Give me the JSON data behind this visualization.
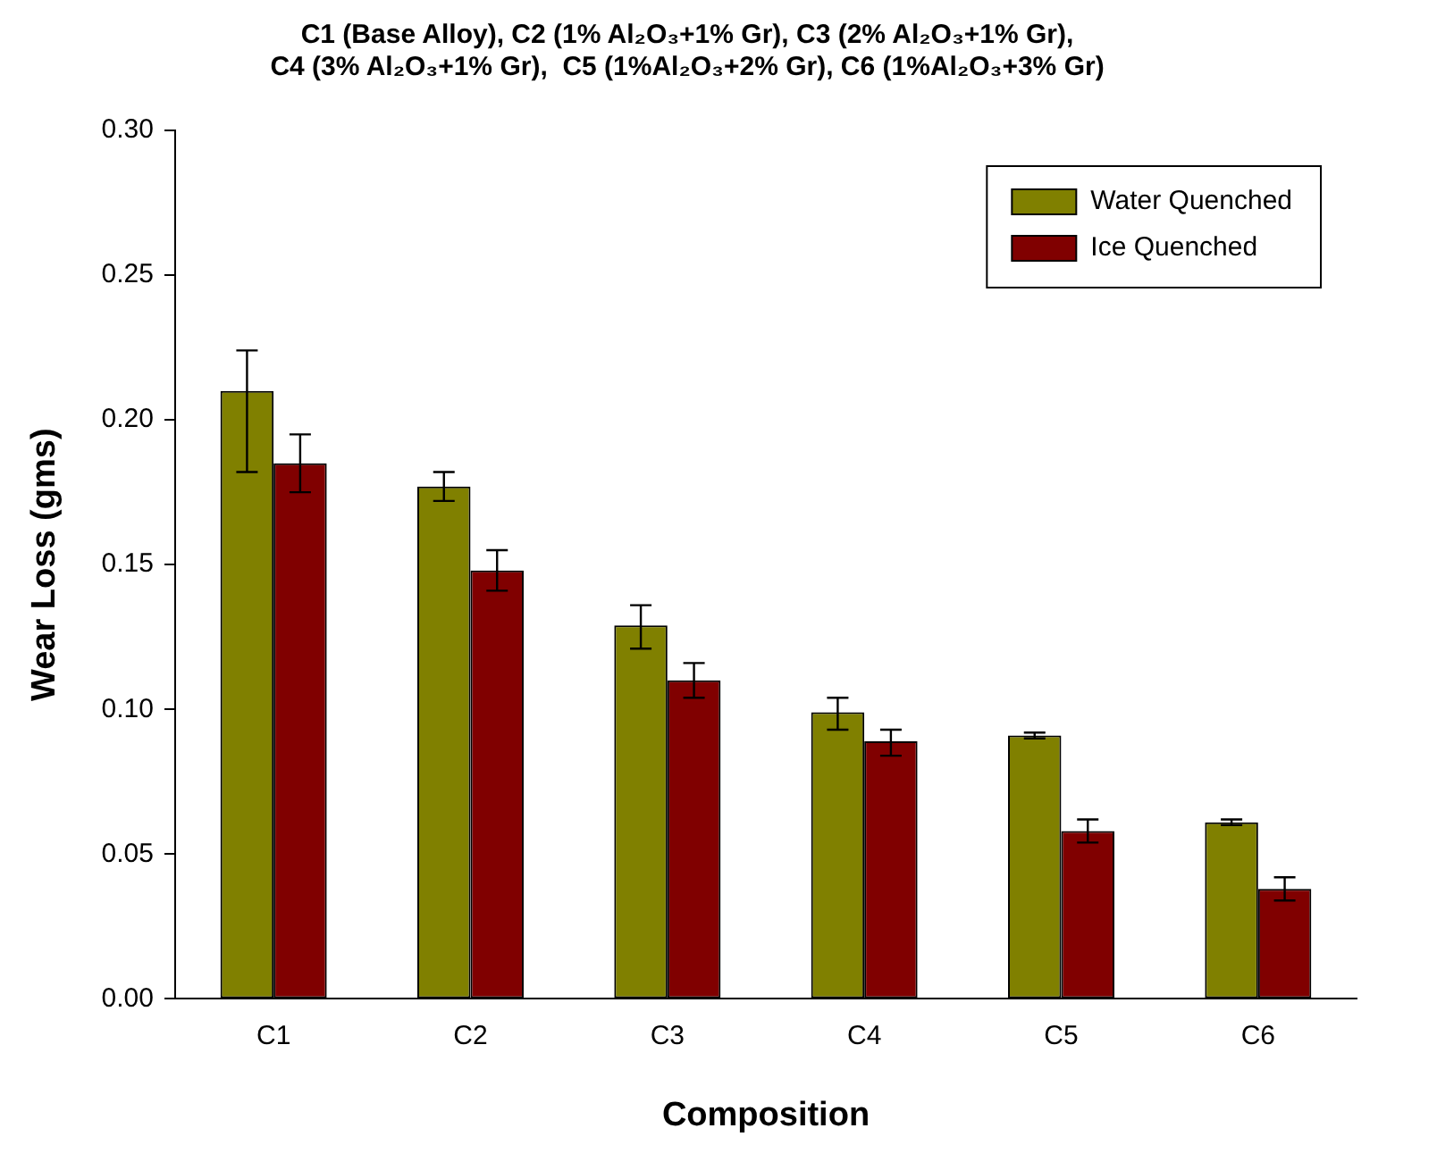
{
  "chart_data": {
    "type": "bar",
    "title": "C1 (Base Alloy), C2 (1% Al₂O₃+1% Gr), C3 (2% Al₂O₃+1% Gr),\nC4 (3% Al₂O₃+1% Gr),  C5 (1%Al₂O₃+2% Gr), C6 (1%Al₂O₃+3% Gr)",
    "xlabel": "Composition",
    "ylabel": "Wear Loss (gms)",
    "categories": [
      "C1",
      "C2",
      "C3",
      "C4",
      "C5",
      "C6"
    ],
    "series": [
      {
        "name": "Water Quenched",
        "color": "#808000",
        "values": [
          0.21,
          0.177,
          0.129,
          0.099,
          0.091,
          0.061
        ],
        "errors": [
          [
            0.182,
            0.224
          ],
          [
            0.172,
            0.182
          ],
          [
            0.121,
            0.136
          ],
          [
            0.093,
            0.104
          ],
          [
            0.09,
            0.092
          ],
          [
            0.06,
            0.062
          ]
        ]
      },
      {
        "name": "Ice Quenched",
        "color": "#800000",
        "values": [
          0.185,
          0.148,
          0.11,
          0.089,
          0.058,
          0.038
        ],
        "errors": [
          [
            0.175,
            0.195
          ],
          [
            0.141,
            0.155
          ],
          [
            0.104,
            0.116
          ],
          [
            0.084,
            0.093
          ],
          [
            0.054,
            0.062
          ],
          [
            0.034,
            0.042
          ]
        ]
      }
    ],
    "ylim": [
      0,
      0.3
    ],
    "yticks": [
      {
        "value": 0,
        "label": "0.00"
      },
      0.05,
      {
        "value": 0.1,
        "label": "0.10"
      },
      0.15,
      {
        "value": 0.2,
        "label": "0.20"
      },
      0.25,
      {
        "value": 0.3,
        "label": "0.30"
      }
    ],
    "grid": false,
    "legend": "top right"
  }
}
